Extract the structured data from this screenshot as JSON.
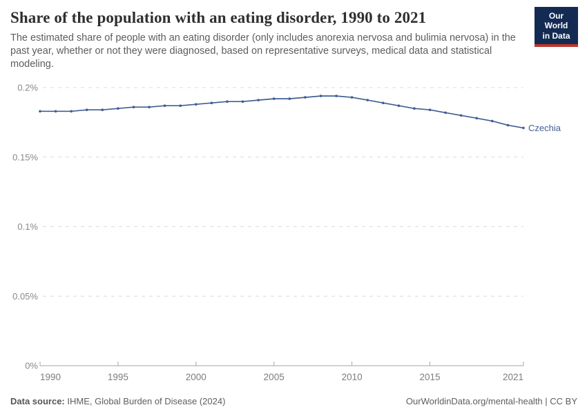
{
  "header": {
    "logo": {
      "line1": "Our World",
      "line2": "in Data"
    }
  },
  "chart_data": {
    "type": "line",
    "title": "Share of the population with an eating disorder, 1990 to 2021",
    "subtitle": "The estimated share of people with an eating disorder (only includes anorexia nervosa and bulimia nervosa) in the past year, whether or not they were diagnosed, based on representative surveys, medical data and statistical modeling.",
    "xlabel": "",
    "ylabel": "",
    "unit": "%",
    "xlim": [
      1990,
      2021
    ],
    "ylim": [
      0,
      0.2
    ],
    "grid": "horizontal-dashed",
    "legend_position": "end-of-line-label",
    "x_ticks": [
      {
        "year": 1990,
        "label": "1990"
      },
      {
        "year": 1995,
        "label": "1995"
      },
      {
        "year": 2000,
        "label": "2000"
      },
      {
        "year": 2005,
        "label": "2005"
      },
      {
        "year": 2010,
        "label": "2010"
      },
      {
        "year": 2015,
        "label": "2015"
      },
      {
        "year": 2021,
        "label": "2021"
      }
    ],
    "y_ticks": [
      {
        "value": 0,
        "label": "0%"
      },
      {
        "value": 0.05,
        "label": "0.05%"
      },
      {
        "value": 0.1,
        "label": "0.1%"
      },
      {
        "value": 0.15,
        "label": "0.15%"
      },
      {
        "value": 0.2,
        "label": "0.2%"
      }
    ],
    "x": [
      1990,
      1991,
      1992,
      1993,
      1994,
      1995,
      1996,
      1997,
      1998,
      1999,
      2000,
      2001,
      2002,
      2003,
      2004,
      2005,
      2006,
      2007,
      2008,
      2009,
      2010,
      2011,
      2012,
      2013,
      2014,
      2015,
      2016,
      2017,
      2018,
      2019,
      2020,
      2021
    ],
    "series": [
      {
        "name": "Czechia",
        "color": "#415d92",
        "values": [
          0.183,
          0.183,
          0.183,
          0.184,
          0.184,
          0.185,
          0.186,
          0.186,
          0.187,
          0.187,
          0.188,
          0.189,
          0.19,
          0.19,
          0.191,
          0.192,
          0.192,
          0.193,
          0.194,
          0.194,
          0.193,
          0.191,
          0.189,
          0.187,
          0.185,
          0.184,
          0.182,
          0.18,
          0.178,
          0.176,
          0.173,
          0.171
        ]
      }
    ]
  },
  "footer": {
    "datasource_label": "Data source:",
    "datasource_value": "IHME, Global Burden of Disease (2024)",
    "credit": "OurWorldinData.org/mental-health | CC BY"
  },
  "colors": {
    "line": "#415d92",
    "grid": "#dcdcdc",
    "axis": "#a6a6a6",
    "y_tick_label": "#878787",
    "x_tick_label": "#7c7c7c",
    "logo_bg": "#132a52",
    "logo_red": "#c0362c"
  }
}
